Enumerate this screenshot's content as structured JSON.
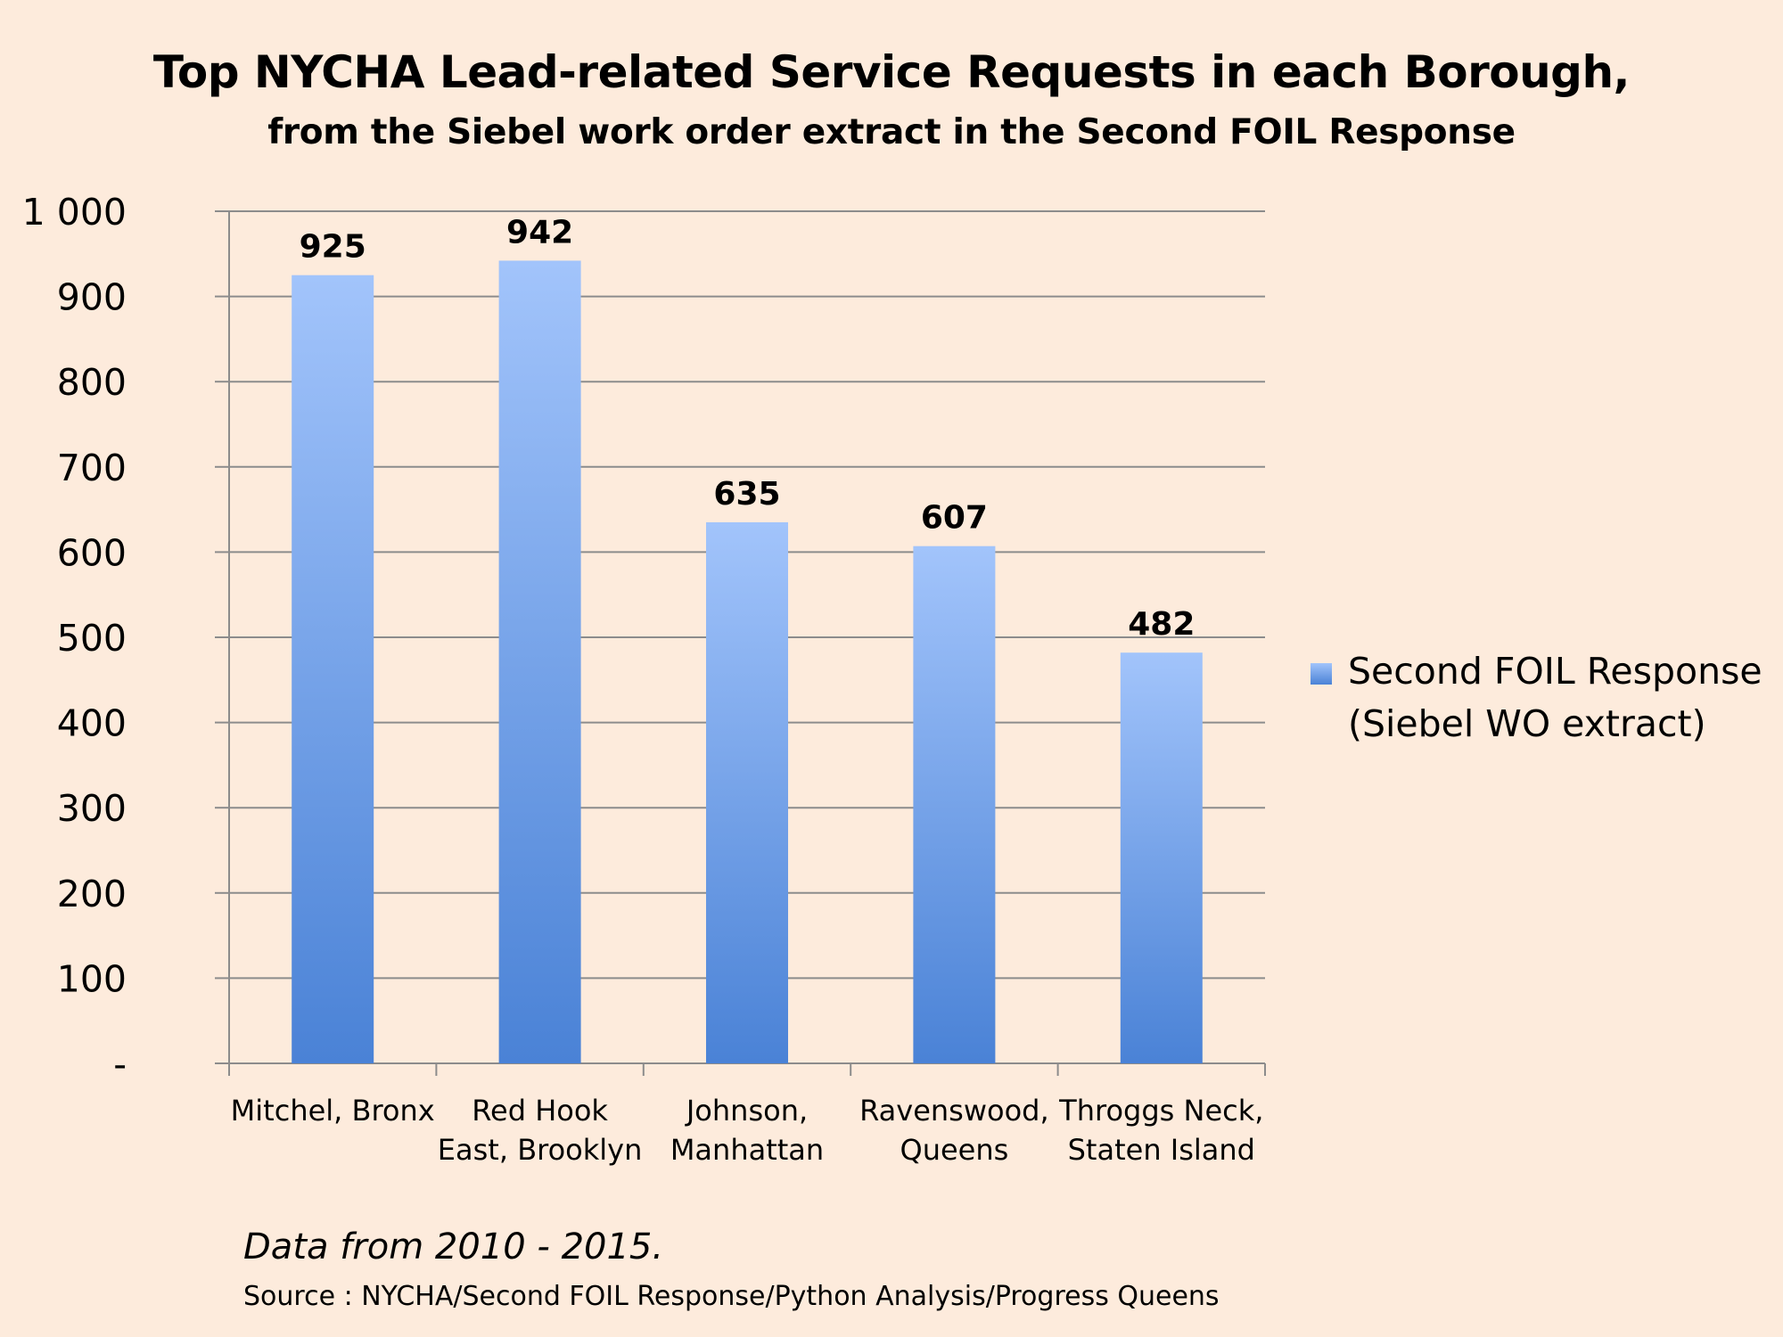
{
  "chart_data": {
    "type": "bar",
    "title": "Top NYCHA Lead-related Service Requests in each Borough,",
    "subtitle": "from the Siebel work order extract in the Second FOIL Response",
    "categories": [
      [
        "Mitchel, Bronx"
      ],
      [
        "Red Hook",
        "East, Brooklyn"
      ],
      [
        "Johnson,",
        "Manhattan"
      ],
      [
        "Ravenswood,",
        "Queens"
      ],
      [
        "Throggs Neck,",
        "Staten Island"
      ]
    ],
    "series": [
      {
        "name": "Second FOIL Response (Siebel WO extract)",
        "values": [
          925,
          942,
          635,
          607,
          482
        ]
      }
    ],
    "data_labels": [
      "925",
      "942",
      "635",
      "607",
      "482"
    ],
    "ylim": [
      0,
      1000
    ],
    "yticks": [
      0,
      100,
      200,
      300,
      400,
      500,
      600,
      700,
      800,
      900,
      1000
    ],
    "ytick_labels": [
      "-",
      "100",
      "200",
      "300",
      "400",
      "500",
      "600",
      "700",
      "800",
      "900",
      "1 000"
    ],
    "xlabel": "",
    "ylabel": "",
    "grid": true,
    "legend_position": "right"
  },
  "legend": {
    "line1": "Second FOIL Response",
    "line2": "(Siebel WO extract)"
  },
  "footer": {
    "note": "Data from 2010 - 2015.",
    "source": "Source : NYCHA/Second FOIL Response/Python Analysis/Progress Queens"
  },
  "colors": {
    "background": "#fdebdc",
    "bar_top": "#a2c4fb",
    "bar_bottom": "#4a82d6",
    "gridline": "#8c8c8c"
  }
}
